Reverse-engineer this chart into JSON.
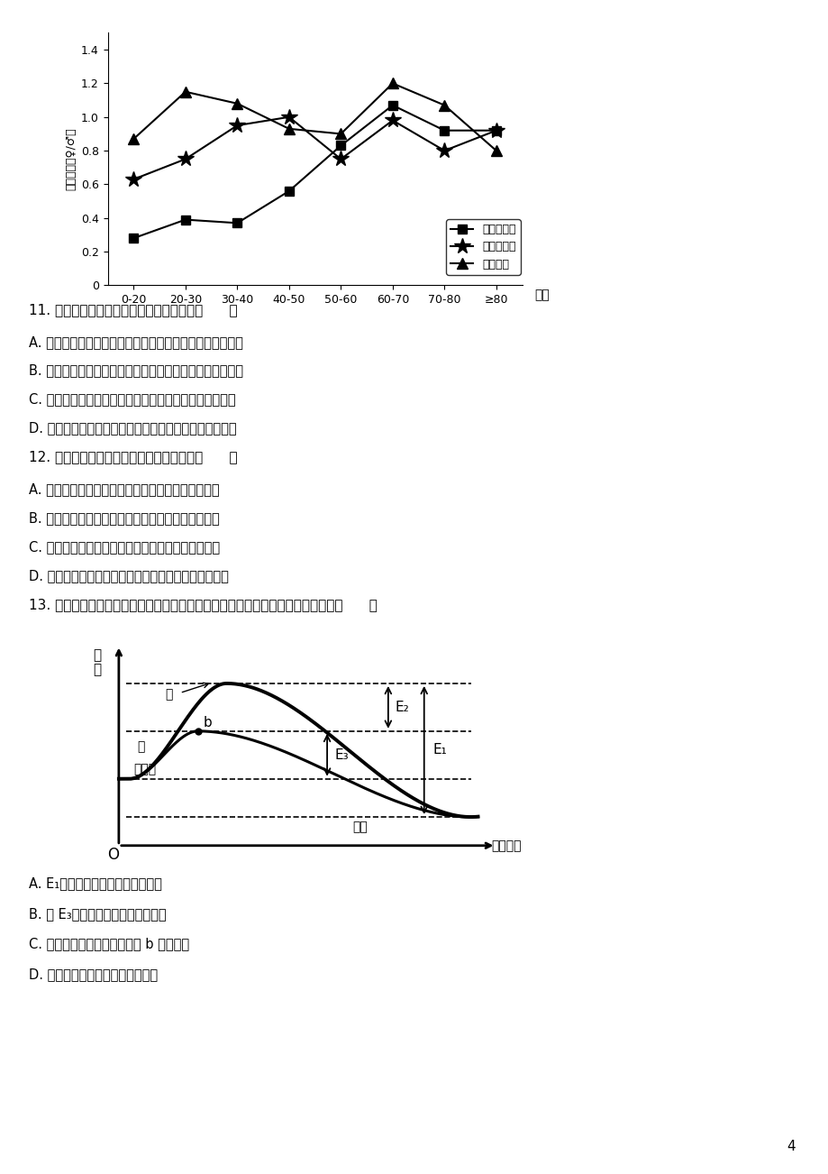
{
  "page_bg": "#ffffff",
  "line_chart": {
    "x_labels": [
      "0-20",
      "20-30",
      "30-40",
      "40-50",
      "50-60",
      "60-70",
      "70-80",
      "≥80"
    ],
    "x_vals": [
      0,
      1,
      2,
      3,
      4,
      5,
      6,
      7
    ],
    "series": [
      {
        "name": "岛屿小种群",
        "marker": "s",
        "data": [
          0.28,
          0.39,
          0.37,
          0.56,
          0.83,
          1.07,
          0.92,
          0.92
        ],
        "mfc": "black"
      },
      {
        "name": "岛屿大种群",
        "marker": "*",
        "data": [
          0.63,
          0.75,
          0.95,
          1.0,
          0.75,
          0.98,
          0.8,
          0.92
        ],
        "mfc": "black"
      },
      {
        "name": "大陆种群",
        "marker": "^",
        "data": [
          0.87,
          1.15,
          1.08,
          0.93,
          0.9,
          1.2,
          1.07,
          0.8
        ],
        "mfc": "black"
      }
    ],
    "ylabel": "性别比例（♀/♂）",
    "xlabel": "年龄",
    "ylim": [
      0,
      1.5
    ],
    "yticks": [
      0,
      0.2,
      0.4,
      0.6,
      0.8,
      1.0,
      1.2,
      1.4
    ]
  },
  "questions": [
    {
      "qnum": "11",
      "text": "11. 下列关于黄连木种群的叙述，正确的是（　　）",
      "options": [
        "A. 大种群黄连木的年龄结构为衰退型，未来的种群数量减少",
        "B. 小种群黄连木随时间变化出生率不变，种群数量基本稳定",
        "C. 黄连木种群的性别比例随着种群个体数量的增加而下降",
        "D. 小种群黄连木的性别比例波动幅度较大种群黄连木的大"
      ]
    },
    {
      "qnum": "12",
      "text": "12. 下列关于千岛湖群落的叙述，正确的是（　　）",
      "options": [
        "A. 不同海拔出现不同类型的植被属于群落的垂直结构",
        "B. 人造林改变了群落演替的方向并增加了生物多样性",
        "C. 新增留鸟与群落中原有鸟类的生态位不会发生重叠",
        "D. 该群落具有复杂的水平结构和明显的季节性变化有关"
      ]
    },
    {
      "qnum": "13",
      "text": "13. 无酶和有酶条件下某化学反应的能量变化如图所示。下列叙述正确的是反应物（　　）",
      "options": []
    }
  ],
  "q13_options": [
    "A. E₁表示酶催化反应所需的活化能",
    "B. 若 E₃越大，则酶的催化效率越高",
    "C. 若将酶改为无机催化剂，则 b 点应上移",
    "D. 据图分析该化学反应为吸能反应"
  ],
  "page_number": "4"
}
